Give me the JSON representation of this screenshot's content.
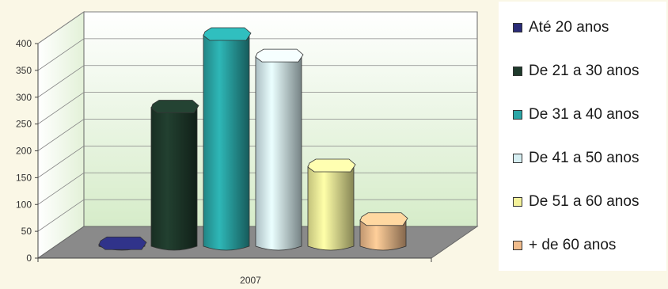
{
  "chart_data": {
    "type": "bar",
    "categories": [
      "2007"
    ],
    "series": [
      {
        "name": "Até 20 anos",
        "values": [
          10
        ],
        "color": "#2a2c78"
      },
      {
        "name": "De 21 a 30 anos",
        "values": [
          265
        ],
        "color": "#1f3a2c"
      },
      {
        "name": "De 31 a 40 anos",
        "values": [
          400
        ],
        "color": "#2aa6a6"
      },
      {
        "name": "De 41 a 50 anos",
        "values": [
          360
        ],
        "color": "#d6eef2"
      },
      {
        "name": "De 51 a 60 anos",
        "values": [
          155
        ],
        "color": "#f4f29a"
      },
      {
        "name": "+ de 60 anos",
        "values": [
          55
        ],
        "color": "#f0bc8c"
      }
    ],
    "yticks": [
      "0",
      "50",
      "100",
      "150",
      "200",
      "250",
      "300",
      "350",
      "400"
    ],
    "ylim": [
      0,
      400
    ],
    "grid": true,
    "legend": "right",
    "title": "",
    "xlabel": "",
    "ylabel": ""
  },
  "legend": {
    "items": [
      "Até 20 anos",
      "De 21 a 30 anos",
      "De 31 a 40 anos",
      "De 41 a 50 anos",
      "De 51 a 60 anos",
      "+ de 60 anos"
    ]
  }
}
